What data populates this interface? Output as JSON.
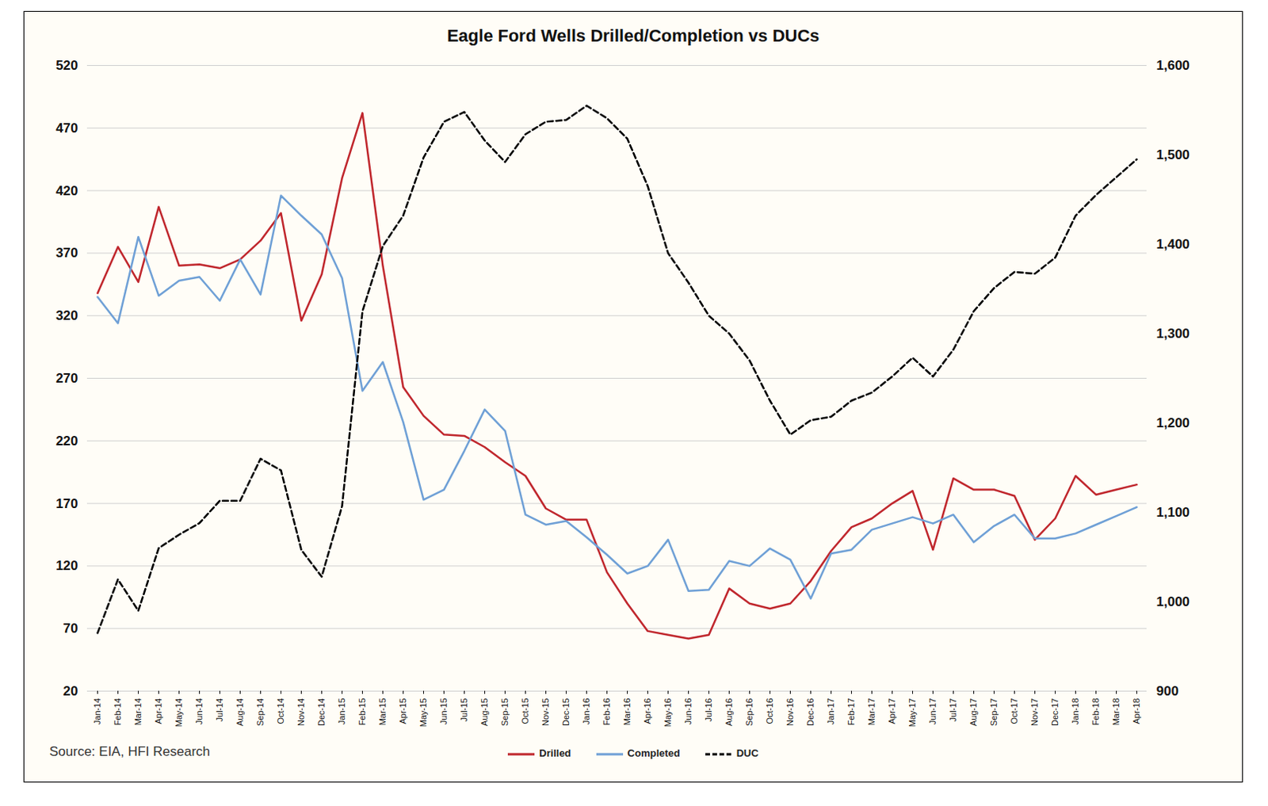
{
  "chart_data": {
    "type": "line",
    "title": "Eagle Ford Wells Drilled/Completion vs DUCs",
    "caption": "Source: EIA, HFI Research",
    "categories": [
      "Jan-14",
      "Feb-14",
      "Mar-14",
      "Apr-14",
      "May-14",
      "Jun-14",
      "Jul-14",
      "Aug-14",
      "Sep-14",
      "Oct-14",
      "Nov-14",
      "Dec-14",
      "Jan-15",
      "Feb-15",
      "Mar-15",
      "Apr-15",
      "May-15",
      "Jun-15",
      "Jul-15",
      "Aug-15",
      "Sep-15",
      "Oct-15",
      "Nov-15",
      "Dec-15",
      "Jan-16",
      "Feb-16",
      "Mar-16",
      "Apr-16",
      "May-16",
      "Jun-16",
      "Jul-16",
      "Aug-16",
      "Sep-16",
      "Oct-16",
      "Nov-16",
      "Dec-16",
      "Jan-17",
      "Feb-17",
      "Mar-17",
      "Apr-17",
      "May-17",
      "Jun-17",
      "Jul-17",
      "Aug-17",
      "Sep-17",
      "Oct-17",
      "Nov-17",
      "Dec-17",
      "Jan-18",
      "Feb-18",
      "Mar-18",
      "Apr-18"
    ],
    "series": [
      {
        "name": "Drilled",
        "color": "#c0272d",
        "line_style": "solid",
        "values": [
          338,
          375,
          347,
          407,
          360,
          361,
          358,
          365,
          380,
          402,
          316,
          353,
          430,
          482,
          360,
          263,
          240,
          225,
          224,
          215,
          203,
          192,
          166,
          157,
          157,
          115,
          90,
          68,
          65,
          62,
          65,
          102,
          90,
          86,
          90,
          108,
          132,
          151,
          158,
          170,
          180,
          133,
          190,
          181,
          181,
          176,
          141,
          158,
          192,
          177,
          181,
          185
        ]
      },
      {
        "name": "Completed",
        "color": "#6fa0d6",
        "line_style": "solid",
        "values": [
          335,
          314,
          383,
          336,
          348,
          351,
          332,
          365,
          337,
          416,
          400,
          385,
          350,
          260,
          283,
          235,
          173,
          181,
          212,
          245,
          228,
          161,
          153,
          156,
          143,
          129,
          114,
          120,
          141,
          100,
          101,
          124,
          120,
          134,
          125,
          94,
          130,
          133,
          149,
          154,
          159,
          154,
          161,
          139,
          152,
          161,
          142,
          142,
          146,
          153,
          160,
          167
        ]
      },
      {
        "name": "DUC",
        "color": "#000000",
        "line_style": "dashed",
        "axis": "y2",
        "values": [
          965,
          1025,
          990,
          1060,
          1075,
          1088,
          1113,
          1113,
          1160,
          1147,
          1058,
          1028,
          1107,
          1325,
          1398,
          1432,
          1497,
          1537,
          1548,
          1516,
          1492,
          1523,
          1537,
          1539,
          1555,
          1541,
          1518,
          1465,
          1390,
          1357,
          1320,
          1300,
          1270,
          1225,
          1187,
          1203,
          1207,
          1225,
          1234,
          1252,
          1273,
          1252,
          1282,
          1325,
          1351,
          1369,
          1367,
          1385,
          1432,
          1455,
          1475,
          1495
        ]
      }
    ],
    "ylim": [
      20,
      520
    ],
    "yticks": [
      20,
      70,
      120,
      170,
      220,
      270,
      320,
      370,
      420,
      470,
      520
    ],
    "y2lim": [
      900,
      1600
    ],
    "y2ticks": [
      900,
      {
        "value": 1000,
        "label": "1,000"
      },
      {
        "value": 1100,
        "label": "1,100"
      },
      {
        "value": 1200,
        "label": "1,200"
      },
      {
        "value": 1300,
        "label": "1,300"
      },
      {
        "value": 1400,
        "label": "1,400"
      },
      {
        "value": 1500,
        "label": "1,500"
      },
      {
        "value": 1600,
        "label": "1,600"
      }
    ],
    "grid": true,
    "legend": "bottom"
  }
}
